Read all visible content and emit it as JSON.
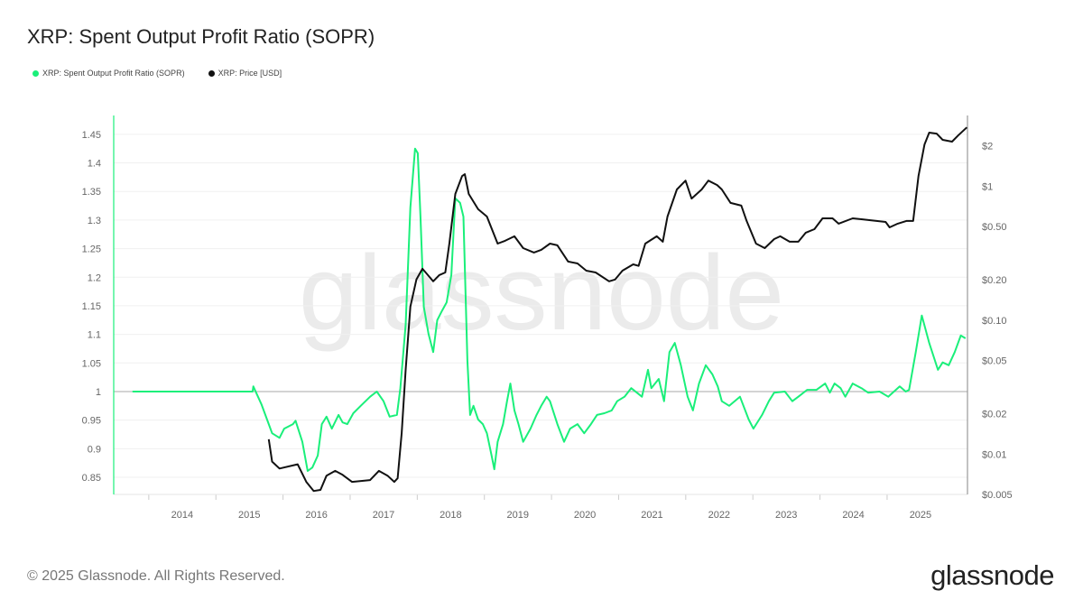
{
  "title": "XRP: Spent Output Profit Ratio (SOPR)",
  "footer": "© 2025 Glassnode. All Rights Reserved.",
  "logo": "glassnode",
  "watermark": "glassnode",
  "colors": {
    "sopr": "#1aef7a",
    "price": "#111111"
  },
  "chart_data": {
    "type": "line",
    "title": "XRP: Spent Output Profit Ratio (SOPR)",
    "legend": [
      "XRP: Spent Output Profit Ratio (SOPR)",
      "XRP: Price [USD]"
    ],
    "legend_placement": "top-left",
    "xlim": [
      2012.98,
      2025.7
    ],
    "x_ticks": [
      "2014",
      "2015",
      "2016",
      "2017",
      "2018",
      "2019",
      "2020",
      "2021",
      "2022",
      "2023",
      "2024",
      "2025"
    ],
    "y_left": {
      "label": "SOPR",
      "lim": [
        0.82,
        1.464
      ],
      "ticks": [
        "0.85",
        "0.9",
        "0.95",
        "1",
        "1.05",
        "1.1",
        "1.15",
        "1.2",
        "1.25",
        "1.3",
        "1.35",
        "1.4",
        "1.45"
      ],
      "reference_line": 1
    },
    "y_right": {
      "label": "Price [USD]",
      "scale": "log",
      "lim": [
        0.005,
        2.8
      ],
      "ticks": [
        "$0.005",
        "$0.01",
        "$0.02",
        "$0.05",
        "$0.10",
        "$0.20",
        "$0.50",
        "$1",
        "$2"
      ],
      "tick_values": [
        0.005,
        0.01,
        0.02,
        0.05,
        0.1,
        0.2,
        0.5,
        1,
        2
      ]
    },
    "grid": true,
    "series": [
      {
        "name": "XRP: Spent Output Profit Ratio (SOPR)",
        "axis": "left",
        "points": [
          [
            2013.26,
            1.0
          ],
          [
            2015.05,
            1.0
          ],
          [
            2015.06,
            1.009
          ],
          [
            2015.18,
            0.978
          ],
          [
            2015.29,
            0.943
          ],
          [
            2015.34,
            0.927
          ],
          [
            2015.45,
            0.919
          ],
          [
            2015.52,
            0.935
          ],
          [
            2015.65,
            0.943
          ],
          [
            2015.69,
            0.949
          ],
          [
            2015.79,
            0.912
          ],
          [
            2015.87,
            0.861
          ],
          [
            2015.94,
            0.867
          ],
          [
            2016.02,
            0.888
          ],
          [
            2016.08,
            0.943
          ],
          [
            2016.15,
            0.956
          ],
          [
            2016.23,
            0.935
          ],
          [
            2016.33,
            0.959
          ],
          [
            2016.39,
            0.946
          ],
          [
            2016.46,
            0.943
          ],
          [
            2016.55,
            0.962
          ],
          [
            2016.66,
            0.975
          ],
          [
            2016.8,
            0.991
          ],
          [
            2016.9,
            1.0
          ],
          [
            2017.0,
            0.983
          ],
          [
            2017.09,
            0.956
          ],
          [
            2017.2,
            0.959
          ],
          [
            2017.25,
            1.006
          ],
          [
            2017.33,
            1.117
          ],
          [
            2017.4,
            1.322
          ],
          [
            2017.47,
            1.425
          ],
          [
            2017.51,
            1.417
          ],
          [
            2017.55,
            1.306
          ],
          [
            2017.6,
            1.148
          ],
          [
            2017.67,
            1.101
          ],
          [
            2017.74,
            1.069
          ],
          [
            2017.8,
            1.125
          ],
          [
            2017.87,
            1.141
          ],
          [
            2017.94,
            1.156
          ],
          [
            2018.01,
            1.204
          ],
          [
            2018.07,
            1.338
          ],
          [
            2018.14,
            1.33
          ],
          [
            2018.19,
            1.306
          ],
          [
            2018.25,
            1.054
          ],
          [
            2018.29,
            0.959
          ],
          [
            2018.34,
            0.975
          ],
          [
            2018.41,
            0.951
          ],
          [
            2018.48,
            0.943
          ],
          [
            2018.54,
            0.927
          ],
          [
            2018.61,
            0.888
          ],
          [
            2018.65,
            0.864
          ],
          [
            2018.7,
            0.912
          ],
          [
            2018.78,
            0.943
          ],
          [
            2018.84,
            0.983
          ],
          [
            2018.89,
            1.014
          ],
          [
            2018.95,
            0.967
          ],
          [
            2019.01,
            0.943
          ],
          [
            2019.08,
            0.912
          ],
          [
            2019.19,
            0.935
          ],
          [
            2019.28,
            0.959
          ],
          [
            2019.35,
            0.975
          ],
          [
            2019.43,
            0.991
          ],
          [
            2019.48,
            0.983
          ],
          [
            2019.59,
            0.943
          ],
          [
            2019.69,
            0.912
          ],
          [
            2019.78,
            0.935
          ],
          [
            2019.89,
            0.943
          ],
          [
            2019.99,
            0.927
          ],
          [
            2020.09,
            0.943
          ],
          [
            2020.18,
            0.959
          ],
          [
            2020.29,
            0.962
          ],
          [
            2020.4,
            0.967
          ],
          [
            2020.48,
            0.983
          ],
          [
            2020.59,
            0.991
          ],
          [
            2020.69,
            1.006
          ],
          [
            2020.85,
            0.991
          ],
          [
            2020.94,
            1.038
          ],
          [
            2020.99,
            1.006
          ],
          [
            2021.1,
            1.022
          ],
          [
            2021.18,
            0.983
          ],
          [
            2021.26,
            1.069
          ],
          [
            2021.34,
            1.085
          ],
          [
            2021.43,
            1.046
          ],
          [
            2021.53,
            0.991
          ],
          [
            2021.61,
            0.967
          ],
          [
            2021.7,
            1.014
          ],
          [
            2021.8,
            1.046
          ],
          [
            2021.9,
            1.03
          ],
          [
            2021.98,
            1.009
          ],
          [
            2022.04,
            0.983
          ],
          [
            2022.15,
            0.975
          ],
          [
            2022.31,
            0.991
          ],
          [
            2022.44,
            0.951
          ],
          [
            2022.51,
            0.935
          ],
          [
            2022.64,
            0.959
          ],
          [
            2022.74,
            0.983
          ],
          [
            2022.82,
            0.998
          ],
          [
            2022.98,
            1.0
          ],
          [
            2023.09,
            0.983
          ],
          [
            2023.18,
            0.991
          ],
          [
            2023.31,
            1.003
          ],
          [
            2023.45,
            1.003
          ],
          [
            2023.58,
            1.014
          ],
          [
            2023.65,
            0.998
          ],
          [
            2023.72,
            1.014
          ],
          [
            2023.81,
            1.006
          ],
          [
            2023.88,
            0.991
          ],
          [
            2023.99,
            1.014
          ],
          [
            2024.12,
            1.006
          ],
          [
            2024.22,
            0.998
          ],
          [
            2024.39,
            1.0
          ],
          [
            2024.52,
            0.991
          ],
          [
            2024.69,
            1.009
          ],
          [
            2024.78,
            1.0
          ],
          [
            2024.83,
            1.003
          ],
          [
            2024.93,
            1.069
          ],
          [
            2025.02,
            1.133
          ],
          [
            2025.13,
            1.085
          ],
          [
            2025.26,
            1.038
          ],
          [
            2025.33,
            1.051
          ],
          [
            2025.42,
            1.046
          ],
          [
            2025.51,
            1.069
          ],
          [
            2025.6,
            1.098
          ],
          [
            2025.67,
            1.093
          ]
        ]
      },
      {
        "name": "XRP: Price [USD]",
        "axis": "right",
        "points": [
          [
            2015.29,
            0.0129
          ],
          [
            2015.34,
            0.0088
          ],
          [
            2015.45,
            0.0078
          ],
          [
            2015.72,
            0.0084
          ],
          [
            2015.85,
            0.0062
          ],
          [
            2015.96,
            0.0053
          ],
          [
            2016.06,
            0.0054
          ],
          [
            2016.15,
            0.0069
          ],
          [
            2016.28,
            0.0075
          ],
          [
            2016.39,
            0.007
          ],
          [
            2016.53,
            0.0062
          ],
          [
            2016.8,
            0.0064
          ],
          [
            2016.93,
            0.0075
          ],
          [
            2017.06,
            0.0069
          ],
          [
            2017.16,
            0.0062
          ],
          [
            2017.21,
            0.0066
          ],
          [
            2017.27,
            0.0144
          ],
          [
            2017.33,
            0.0427
          ],
          [
            2017.4,
            0.126
          ],
          [
            2017.49,
            0.201
          ],
          [
            2017.58,
            0.242
          ],
          [
            2017.66,
            0.217
          ],
          [
            2017.74,
            0.195
          ],
          [
            2017.83,
            0.217
          ],
          [
            2017.92,
            0.227
          ],
          [
            2017.98,
            0.373
          ],
          [
            2018.07,
            0.875
          ],
          [
            2018.17,
            1.19
          ],
          [
            2018.21,
            1.23
          ],
          [
            2018.27,
            0.875
          ],
          [
            2018.41,
            0.673
          ],
          [
            2018.54,
            0.594
          ],
          [
            2018.7,
            0.373
          ],
          [
            2018.81,
            0.391
          ],
          [
            2018.95,
            0.423
          ],
          [
            2019.08,
            0.345
          ],
          [
            2019.24,
            0.32
          ],
          [
            2019.35,
            0.335
          ],
          [
            2019.48,
            0.373
          ],
          [
            2019.59,
            0.362
          ],
          [
            2019.75,
            0.274
          ],
          [
            2019.89,
            0.265
          ],
          [
            2020.02,
            0.234
          ],
          [
            2020.16,
            0.227
          ],
          [
            2020.36,
            0.195
          ],
          [
            2020.45,
            0.201
          ],
          [
            2020.56,
            0.234
          ],
          [
            2020.72,
            0.261
          ],
          [
            2020.8,
            0.254
          ],
          [
            2020.9,
            0.373
          ],
          [
            2021.07,
            0.423
          ],
          [
            2021.16,
            0.385
          ],
          [
            2021.23,
            0.594
          ],
          [
            2021.37,
            0.946
          ],
          [
            2021.5,
            1.1
          ],
          [
            2021.59,
            0.808
          ],
          [
            2021.74,
            0.946
          ],
          [
            2021.84,
            1.1
          ],
          [
            2021.97,
            1.02
          ],
          [
            2022.04,
            0.946
          ],
          [
            2022.17,
            0.75
          ],
          [
            2022.33,
            0.716
          ],
          [
            2022.41,
            0.55
          ],
          [
            2022.55,
            0.373
          ],
          [
            2022.68,
            0.345
          ],
          [
            2022.82,
            0.403
          ],
          [
            2022.91,
            0.423
          ],
          [
            2023.05,
            0.385
          ],
          [
            2023.18,
            0.385
          ],
          [
            2023.29,
            0.45
          ],
          [
            2023.42,
            0.478
          ],
          [
            2023.54,
            0.576
          ],
          [
            2023.69,
            0.576
          ],
          [
            2023.78,
            0.525
          ],
          [
            2023.99,
            0.576
          ],
          [
            2024.12,
            0.567
          ],
          [
            2024.48,
            0.541
          ],
          [
            2024.54,
            0.493
          ],
          [
            2024.66,
            0.525
          ],
          [
            2024.79,
            0.55
          ],
          [
            2024.89,
            0.55
          ],
          [
            2024.97,
            1.19
          ],
          [
            2025.06,
            2.05
          ],
          [
            2025.13,
            2.51
          ],
          [
            2025.24,
            2.47
          ],
          [
            2025.33,
            2.22
          ],
          [
            2025.47,
            2.15
          ],
          [
            2025.56,
            2.39
          ],
          [
            2025.69,
            2.75
          ]
        ]
      }
    ]
  }
}
